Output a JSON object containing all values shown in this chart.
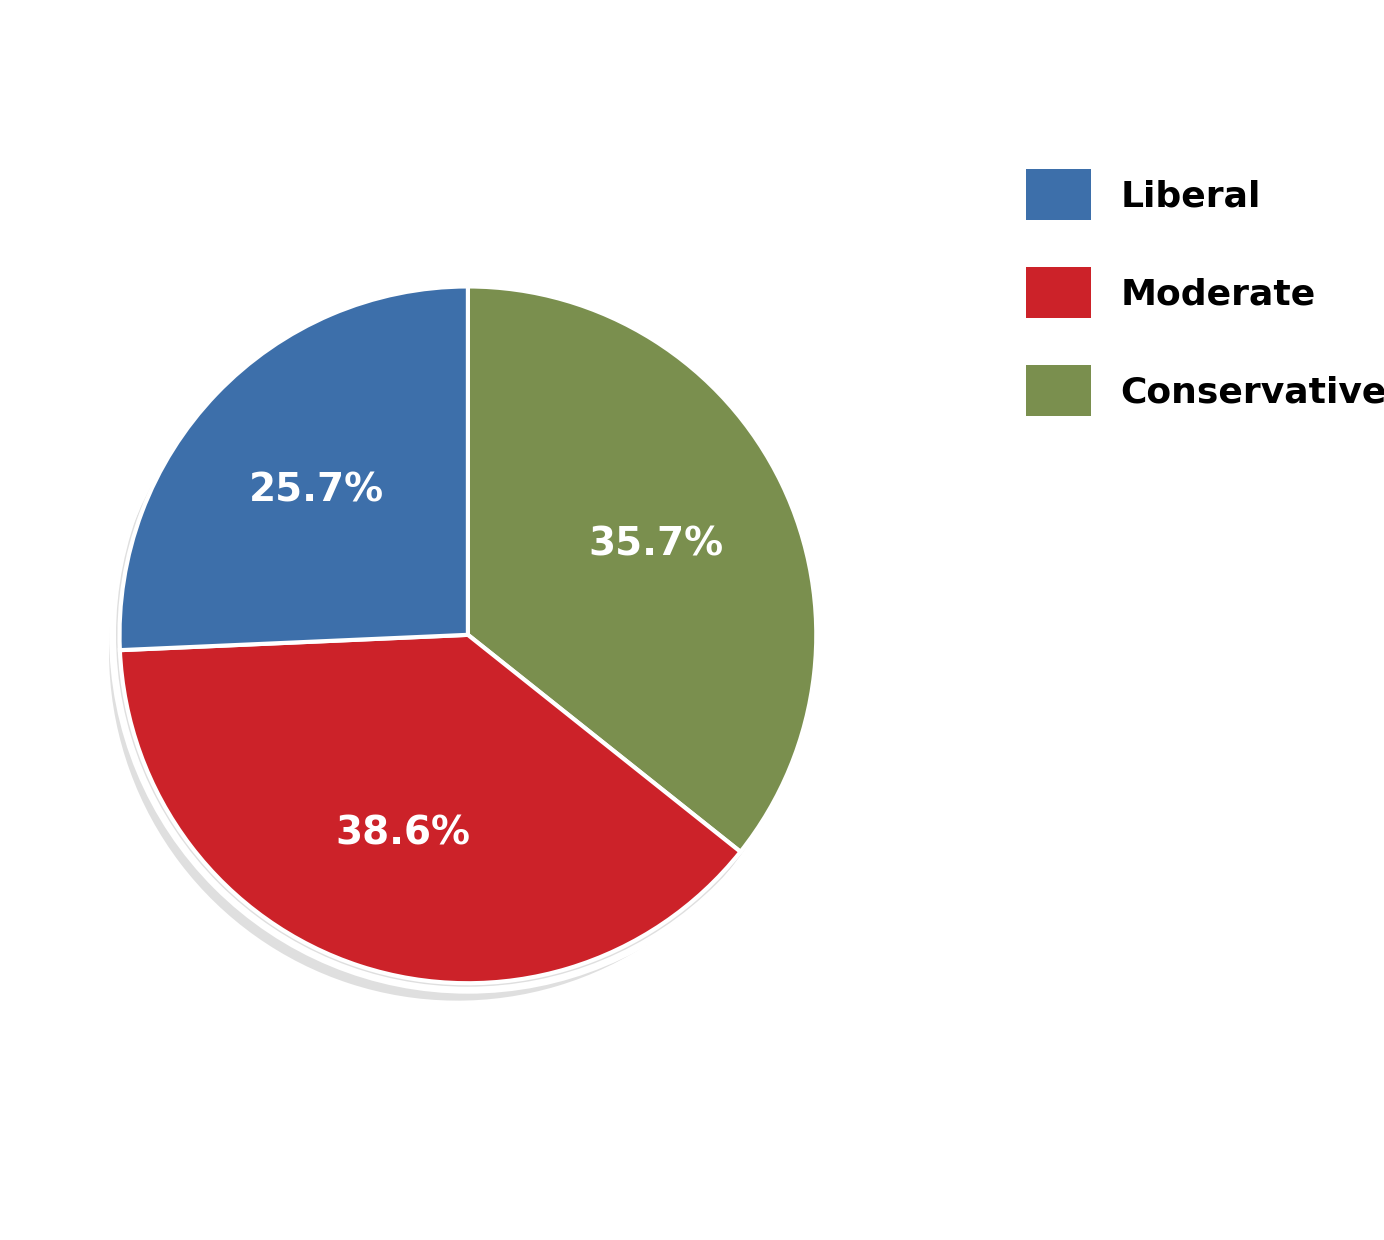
{
  "labels": [
    "Conservative",
    "Moderate",
    "Liberal"
  ],
  "values": [
    35.7,
    38.6,
    25.7
  ],
  "colors": [
    "#7a8f4e",
    "#cc2229",
    "#3d6faa"
  ],
  "text_color": "#ffffff",
  "background_color": "#ffffff",
  "legend_labels": [
    "Liberal",
    "Moderate",
    "Conservative"
  ],
  "legend_colors": [
    "#3d6faa",
    "#cc2229",
    "#7a8f4e"
  ],
  "pct_labels": [
    "35.7%",
    "38.6%",
    "25.7%"
  ],
  "startangle": 90,
  "wedge_edge_color": "#ffffff",
  "wedge_edge_width": 3,
  "label_fontsize": 28,
  "legend_fontsize": 26
}
